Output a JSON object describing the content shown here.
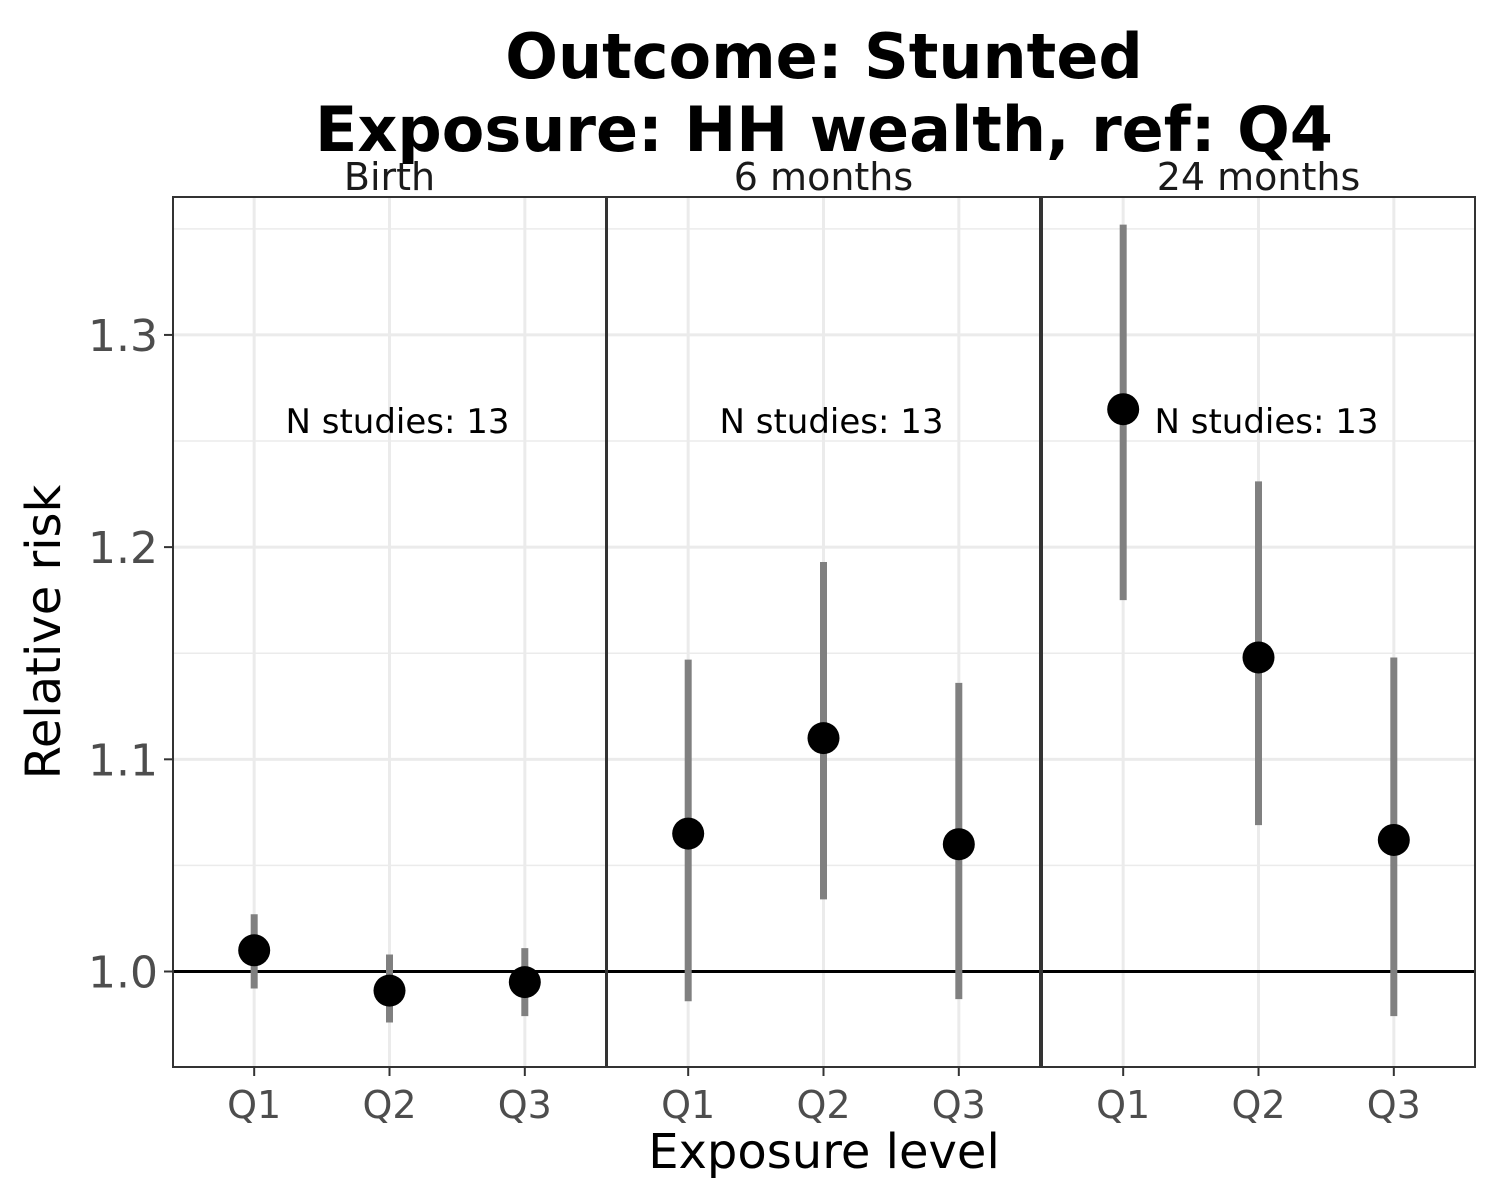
{
  "chart_data": {
    "type": "scatter",
    "title_lines": [
      "Outcome: Stunted",
      "Exposure: HH wealth, ref: Q4"
    ],
    "xlabel": "Exposure level",
    "ylabel": "Relative risk",
    "categories": [
      "Q1",
      "Q2",
      "Q3"
    ],
    "yticks": [
      "1.0",
      "1.1",
      "1.2",
      "1.3"
    ],
    "ylim": [
      0.955,
      1.365
    ],
    "reference_line": 1.0,
    "grid": true,
    "colors": {
      "point": "#000000",
      "ci": "#808080",
      "reference": "#000000",
      "grid": "#ebebeb",
      "border": "#333333"
    },
    "panels": [
      {
        "name": "Birth",
        "annotation": "N studies: 13",
        "points": [
          {
            "x": "Q1",
            "rr": 1.01,
            "lower": 0.992,
            "upper": 1.027
          },
          {
            "x": "Q2",
            "rr": 0.991,
            "lower": 0.976,
            "upper": 1.008
          },
          {
            "x": "Q3",
            "rr": 0.995,
            "lower": 0.979,
            "upper": 1.011
          }
        ]
      },
      {
        "name": "6 months",
        "annotation": "N studies: 13",
        "points": [
          {
            "x": "Q1",
            "rr": 1.065,
            "lower": 0.986,
            "upper": 1.147
          },
          {
            "x": "Q2",
            "rr": 1.11,
            "lower": 1.034,
            "upper": 1.193
          },
          {
            "x": "Q3",
            "rr": 1.06,
            "lower": 0.987,
            "upper": 1.136
          }
        ]
      },
      {
        "name": "24 months",
        "annotation": "N studies: 13",
        "points": [
          {
            "x": "Q1",
            "rr": 1.265,
            "lower": 1.175,
            "upper": 1.352
          },
          {
            "x": "Q2",
            "rr": 1.148,
            "lower": 1.069,
            "upper": 1.231
          },
          {
            "x": "Q3",
            "rr": 1.062,
            "lower": 0.979,
            "upper": 1.148
          }
        ]
      }
    ]
  }
}
